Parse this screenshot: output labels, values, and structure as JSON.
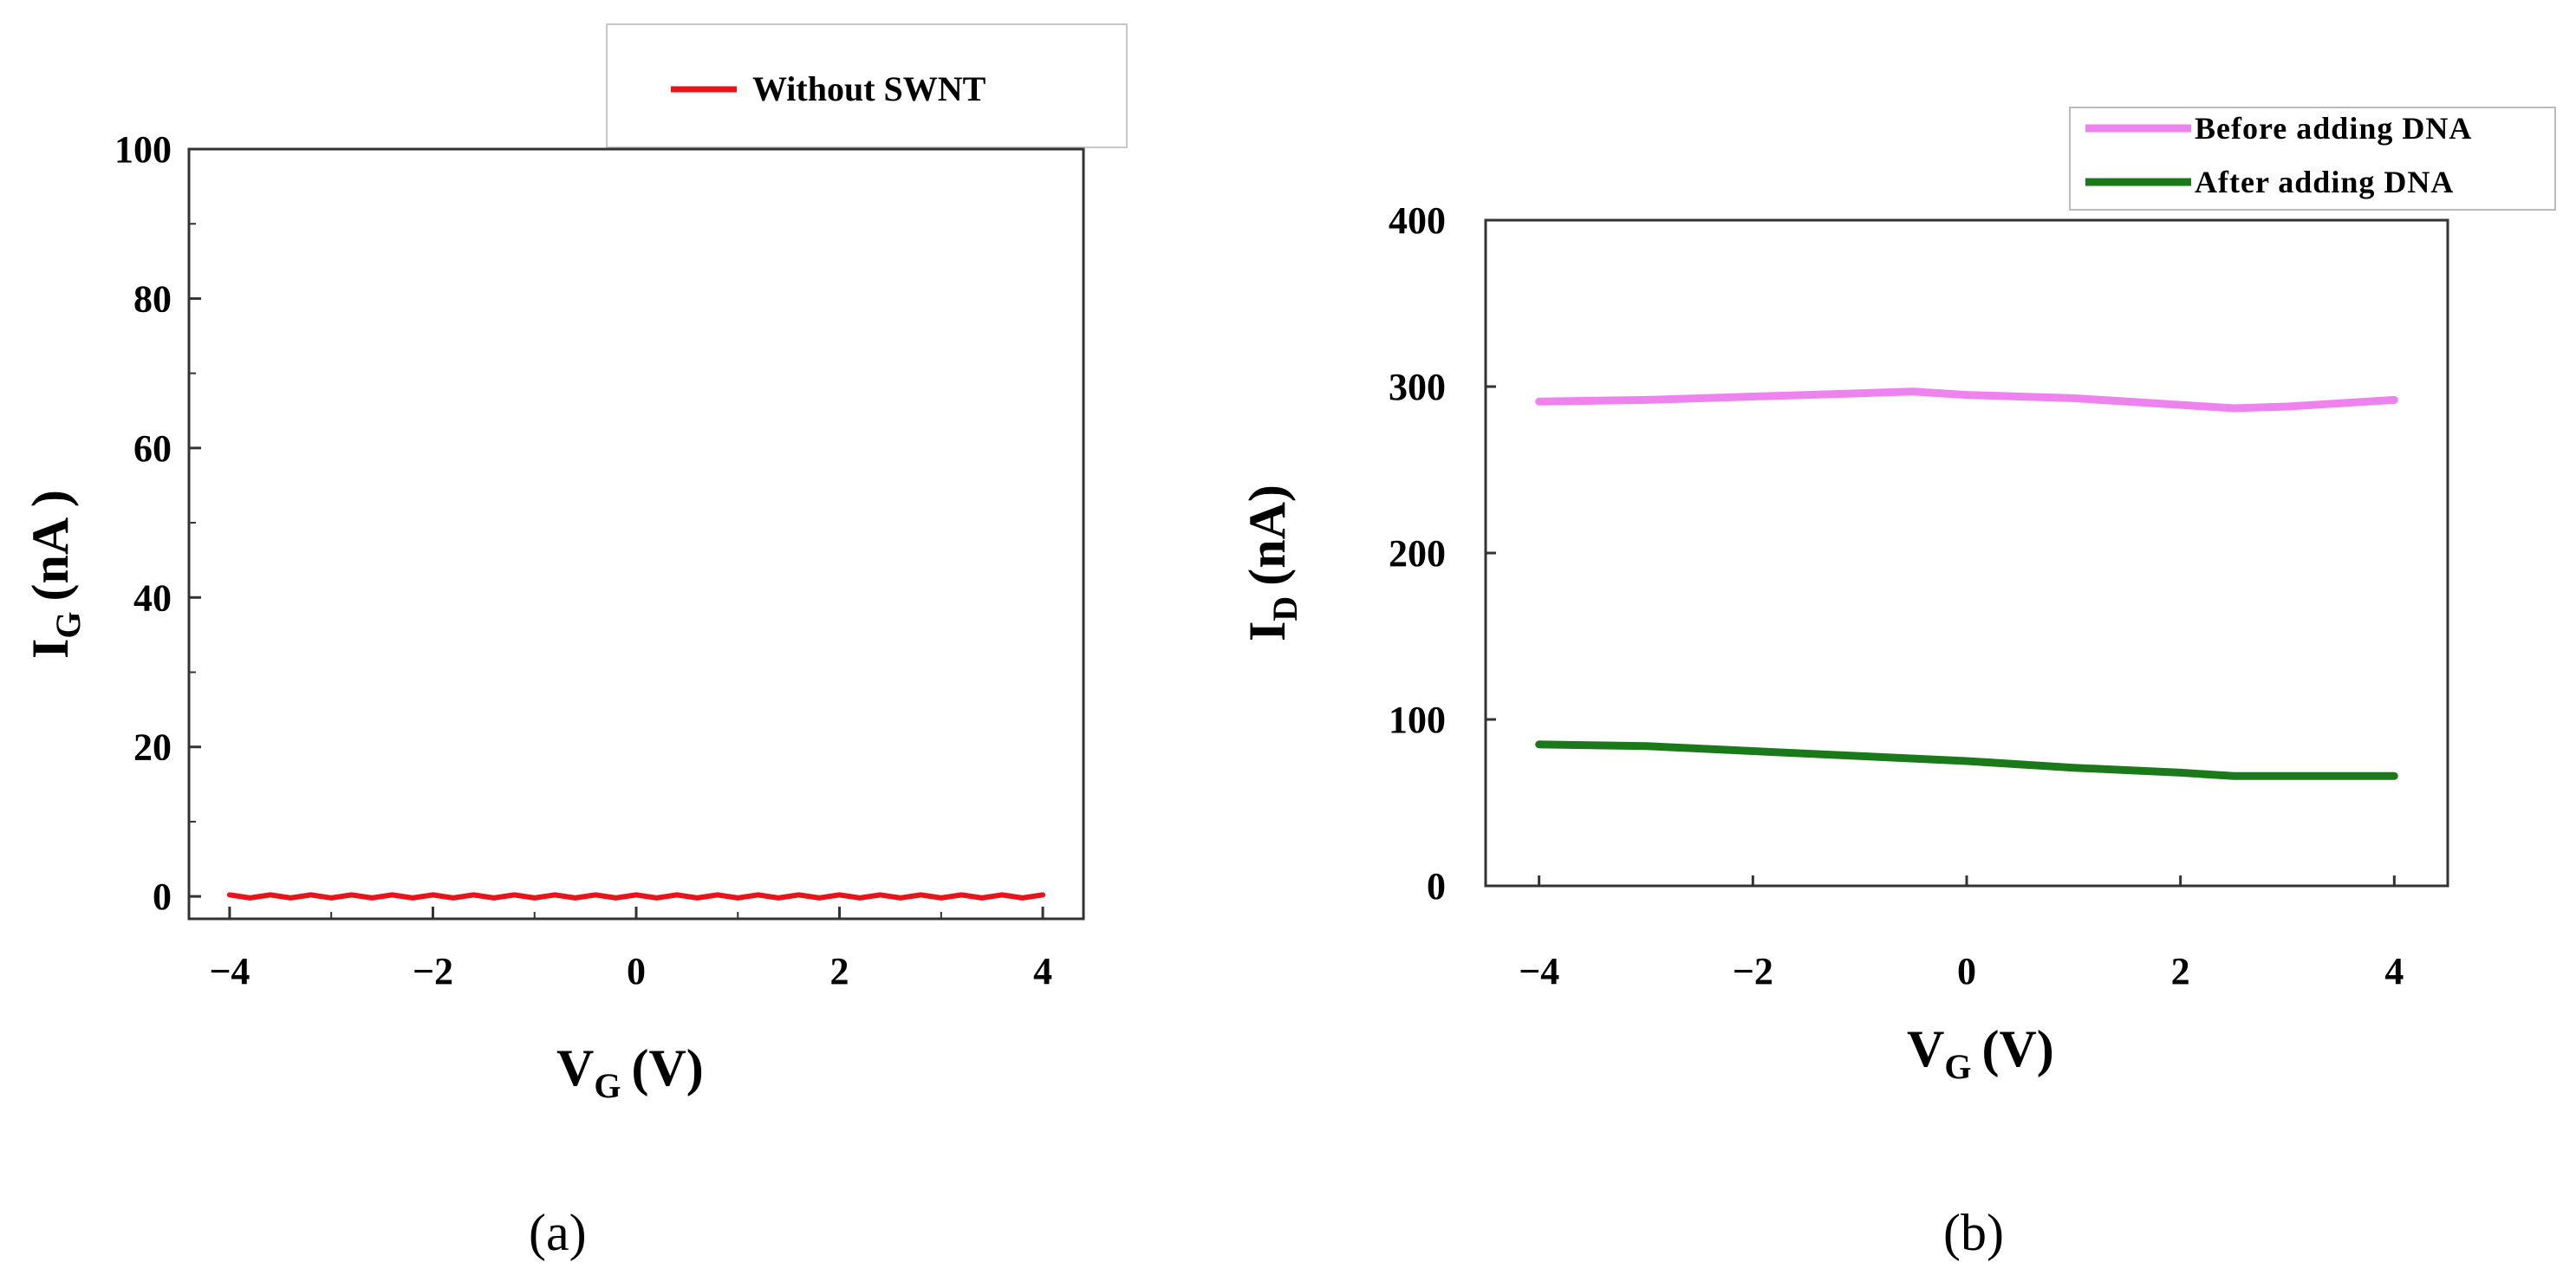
{
  "chart_data": [
    {
      "type": "line",
      "panel_label": "(a)",
      "xlabel": "V",
      "xlabel_sub": "G",
      "xlabel_unit": "(V)",
      "ylabel": "I",
      "ylabel_sub": "G",
      "ylabel_unit": "(nA )",
      "xlim": [
        -4.4,
        4.4
      ],
      "ylim": [
        -3,
        100
      ],
      "xticks": [
        -4,
        -2,
        0,
        2,
        4
      ],
      "xtick_labels": [
        "−4",
        "−2",
        "0",
        "2",
        "4"
      ],
      "yticks": [
        0,
        20,
        40,
        60,
        80,
        100
      ],
      "ytick_labels": [
        "0",
        "20",
        "40",
        "60",
        "80",
        "100"
      ],
      "legend_position": "top-right, outside",
      "series": [
        {
          "name": "Without SWNT",
          "color": "#e8141c",
          "x": [
            -4,
            -3.8,
            -3.6,
            -3.4,
            -3.2,
            -3,
            -2.8,
            -2.6,
            -2.4,
            -2.2,
            -2,
            -1.8,
            -1.6,
            -1.4,
            -1.2,
            -1,
            -0.8,
            -0.6,
            -0.4,
            -0.2,
            0,
            0.2,
            0.4,
            0.6,
            0.8,
            1,
            1.2,
            1.4,
            1.6,
            1.8,
            2,
            2.2,
            2.4,
            2.6,
            2.8,
            3,
            3.2,
            3.4,
            3.6,
            3.8,
            4
          ],
          "y": [
            0.2,
            -0.2,
            0.2,
            -0.2,
            0.2,
            -0.2,
            0.2,
            -0.2,
            0.2,
            -0.2,
            0.2,
            -0.2,
            0.2,
            -0.2,
            0.2,
            -0.2,
            0.2,
            -0.2,
            0.2,
            -0.2,
            0.2,
            -0.2,
            0.2,
            -0.2,
            0.2,
            -0.2,
            0.2,
            -0.2,
            0.2,
            -0.2,
            0.2,
            -0.2,
            0.2,
            -0.2,
            0.2,
            -0.2,
            0.2,
            -0.2,
            0.2,
            -0.2,
            0.2
          ]
        }
      ]
    },
    {
      "type": "line",
      "panel_label": "(b)",
      "xlabel": "V",
      "xlabel_sub": "G",
      "xlabel_unit": "(V)",
      "ylabel": "I",
      "ylabel_sub": "D",
      "ylabel_unit": "(nA)",
      "xlim": [
        -4.5,
        4.5
      ],
      "ylim": [
        0,
        400
      ],
      "xticks": [
        -4,
        -2,
        0,
        2,
        4
      ],
      "xtick_labels": [
        "−4",
        "−2",
        "0",
        "2",
        "4"
      ],
      "yticks": [
        0,
        100,
        200,
        300,
        400
      ],
      "ytick_labels": [
        "0",
        "100",
        "200",
        "300",
        "400"
      ],
      "legend_position": "top-right, outside",
      "series": [
        {
          "name": "Before adding DNA",
          "color": "#ee82ee",
          "x": [
            -4,
            -3,
            -2,
            -1,
            -0.5,
            0,
            1,
            2,
            2.5,
            3,
            4
          ],
          "y": [
            291,
            292,
            294,
            296,
            297,
            295,
            293,
            289,
            287,
            288,
            292
          ]
        },
        {
          "name": "After adding DNA",
          "color": "#1a7a1a",
          "x": [
            -4,
            -3,
            -2,
            -1,
            0,
            1,
            2,
            2.5,
            3,
            4
          ],
          "y": [
            85,
            84,
            81,
            78,
            75,
            71,
            68,
            66,
            66,
            66
          ]
        }
      ]
    }
  ]
}
